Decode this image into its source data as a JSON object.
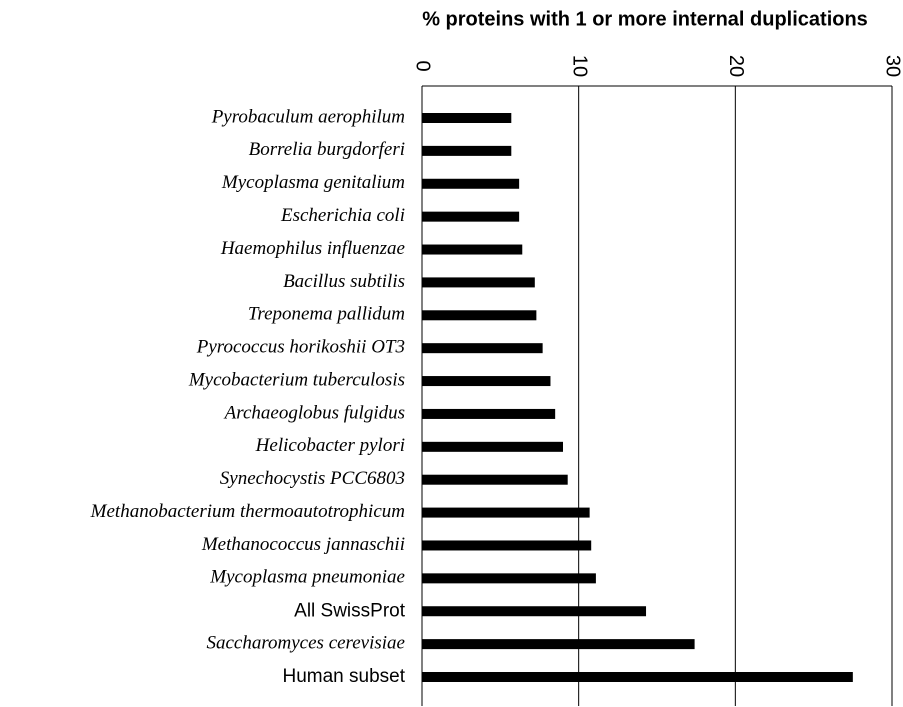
{
  "chart_data": {
    "type": "hbar",
    "title": "% proteins with 1 or more internal duplications",
    "categories": [
      "Pyrobaculum aerophilum",
      "Borrelia burgdorferi",
      "Mycoplasma genitalium",
      "Escherichia coli",
      "Haemophilus influenzae",
      "Bacillus subtilis",
      "Treponema pallidum",
      "Pyrococcus horikoshii OT3",
      "Mycobacterium tuberculosis",
      "Archaeoglobus fulgidus",
      "Helicobacter pylori",
      "Synechocystis PCC6803",
      "Methanobacterium thermoautotrophicum",
      "Methanococcus jannaschii",
      "Mycoplasma pneumoniae",
      "All SwissProt",
      "Saccharomyces cerevisiae",
      "Human subset"
    ],
    "italic_labels": [
      true,
      true,
      true,
      true,
      true,
      true,
      true,
      true,
      true,
      true,
      true,
      true,
      true,
      true,
      true,
      false,
      true,
      false
    ],
    "values": [
      5.7,
      5.7,
      6.2,
      6.2,
      6.4,
      7.2,
      7.3,
      7.7,
      8.2,
      8.5,
      9.0,
      9.3,
      10.7,
      10.8,
      11.1,
      14.3,
      17.4,
      27.5
    ],
    "color": "#000000",
    "xlim": [
      0,
      30
    ],
    "xticks": [
      0,
      10,
      20,
      30
    ],
    "grid": true
  }
}
